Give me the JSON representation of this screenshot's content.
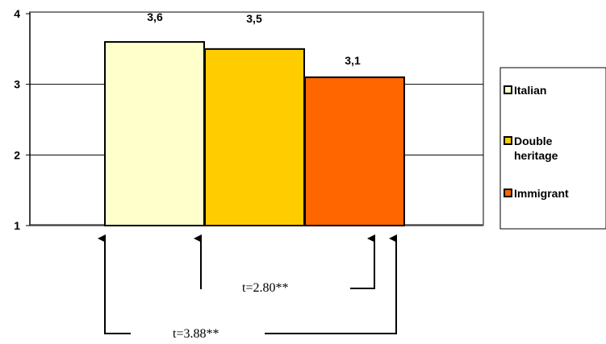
{
  "chart_data": {
    "type": "bar",
    "categories": [
      "Italian",
      "Double heritage",
      "Immigrant"
    ],
    "values": [
      3.6,
      3.5,
      3.1
    ],
    "data_labels": [
      "3,6",
      "3,5",
      "3,1"
    ],
    "colors": [
      "#FFFFCC",
      "#FFCC00",
      "#FF6600"
    ],
    "ylim": [
      1,
      4
    ],
    "yticks": [
      "1",
      "2",
      "3",
      "4"
    ],
    "grid": true,
    "legend": {
      "position": "right",
      "items": [
        {
          "label_lines": [
            "Italian"
          ],
          "color": "#FFFFCC"
        },
        {
          "label_lines": [
            "Double",
            "heritage"
          ],
          "color": "#FFCC00"
        },
        {
          "label_lines": [
            "Immigrant"
          ],
          "color": "#FF6600"
        }
      ]
    },
    "annotations": [
      {
        "text": "t=2.80**",
        "between": [
          "Double heritage",
          "Immigrant"
        ]
      },
      {
        "text": "t=3.88**",
        "between": [
          "Italian",
          "Immigrant"
        ]
      }
    ]
  }
}
